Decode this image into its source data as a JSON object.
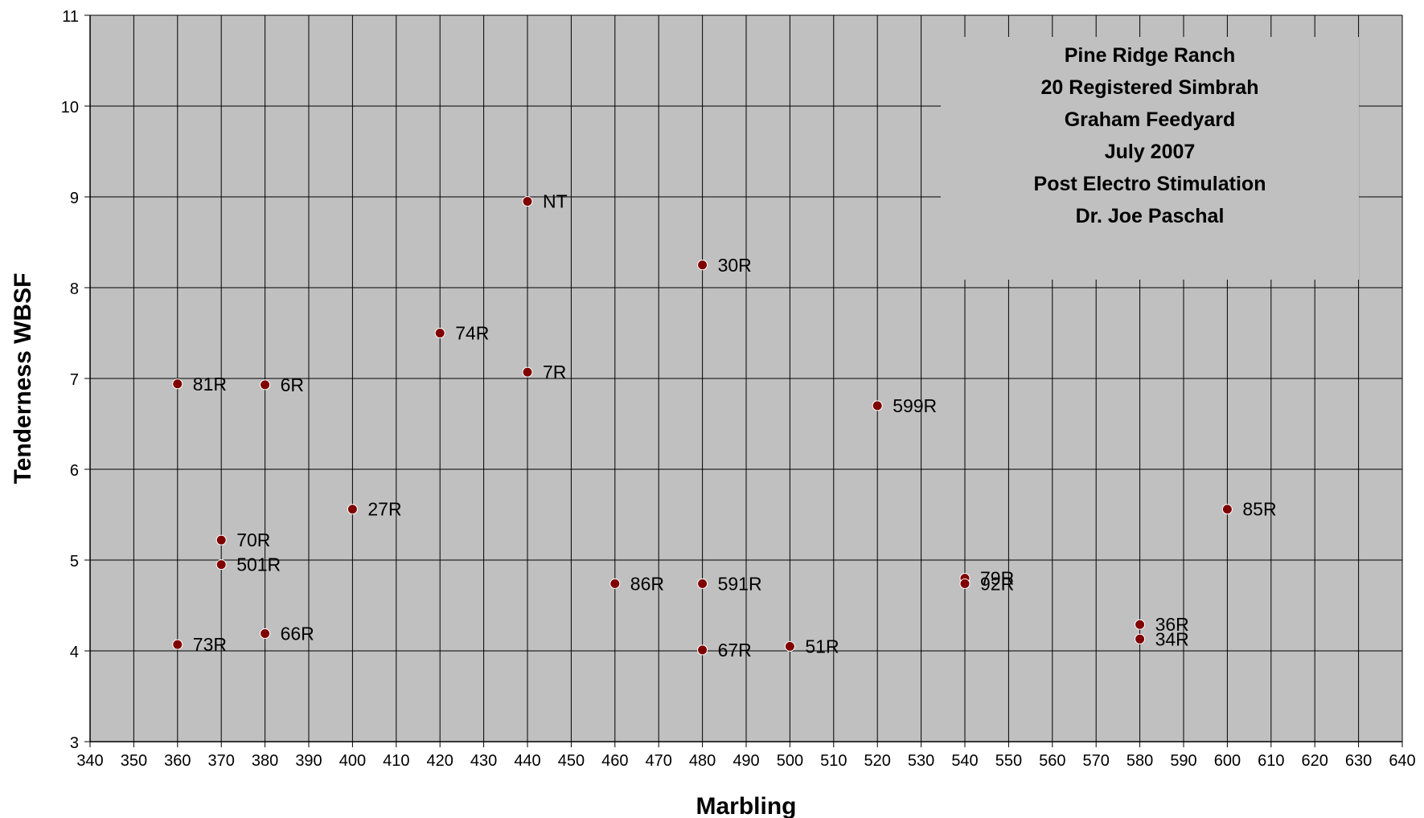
{
  "chart_data": {
    "type": "scatter",
    "xlabel": "Marbling",
    "ylabel": "Tenderness WBSF",
    "xlim": [
      340,
      640
    ],
    "ylim": [
      3,
      11
    ],
    "x_ticks": [
      "340",
      "350",
      "360",
      "370",
      "380",
      "390",
      "400",
      "410",
      "420",
      "430",
      "440",
      "450",
      "460",
      "470",
      "480",
      "490",
      "500",
      "510",
      "520",
      "530",
      "540",
      "550",
      "560",
      "570",
      "580",
      "590",
      "600",
      "610",
      "620",
      "630",
      "640"
    ],
    "y_ticks": [
      "3",
      "4",
      "5",
      "6",
      "7",
      "8",
      "9",
      "10",
      "11"
    ],
    "grid": true,
    "plot_background": "#c0c0c0",
    "marker_color": "#800000",
    "annotation_lines": [
      "Pine Ridge Ranch",
      "20 Registered Simbrah",
      "Graham Feedyard",
      "July 2007",
      "Post Electro Stimulation",
      "Dr. Joe Paschal"
    ],
    "points": [
      {
        "x": 440,
        "y": 8.95,
        "label": "NT"
      },
      {
        "x": 480,
        "y": 8.25,
        "label": "30R"
      },
      {
        "x": 420,
        "y": 7.5,
        "label": "74R"
      },
      {
        "x": 440,
        "y": 7.07,
        "label": "7R"
      },
      {
        "x": 360,
        "y": 6.94,
        "label": "81R"
      },
      {
        "x": 380,
        "y": 6.93,
        "label": "6R"
      },
      {
        "x": 520,
        "y": 6.7,
        "label": "599R"
      },
      {
        "x": 400,
        "y": 5.56,
        "label": "27R"
      },
      {
        "x": 600,
        "y": 5.56,
        "label": "85R"
      },
      {
        "x": 370,
        "y": 5.22,
        "label": "70R"
      },
      {
        "x": 370,
        "y": 4.95,
        "label": "501R"
      },
      {
        "x": 540,
        "y": 4.8,
        "label": "79R"
      },
      {
        "x": 460,
        "y": 4.74,
        "label": "86R"
      },
      {
        "x": 480,
        "y": 4.74,
        "label": "591R"
      },
      {
        "x": 540,
        "y": 4.74,
        "label": "92R"
      },
      {
        "x": 580,
        "y": 4.29,
        "label": "36R"
      },
      {
        "x": 380,
        "y": 4.19,
        "label": "66R"
      },
      {
        "x": 580,
        "y": 4.13,
        "label": "34R"
      },
      {
        "x": 360,
        "y": 4.07,
        "label": "73R"
      },
      {
        "x": 500,
        "y": 4.05,
        "label": "51R"
      },
      {
        "x": 480,
        "y": 4.01,
        "label": "67R"
      }
    ]
  }
}
